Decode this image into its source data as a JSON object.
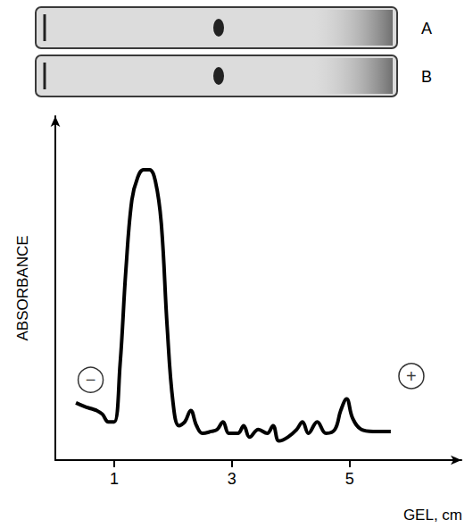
{
  "chart_data": {
    "type": "line",
    "panels": [
      "A",
      "B"
    ],
    "x_label": "GEL, cm",
    "y_label": "ABSORBANCE",
    "color": "#000000",
    "grid": false,
    "tick_labels": "x",
    "xlim": [
      0,
      6.9
    ],
    "xticks": [
      1,
      3,
      5
    ],
    "ylim": [
      0,
      9
    ],
    "x": [
      0.35,
      0.5,
      0.6,
      0.7,
      0.8,
      0.9,
      1.0,
      1.1,
      1.2,
      1.3,
      1.4,
      1.5,
      1.6,
      1.7,
      1.8,
      1.9,
      2.0,
      2.1,
      2.2,
      2.3,
      2.4,
      2.5,
      2.65,
      2.75,
      2.85,
      2.95,
      3.1,
      3.2,
      3.3,
      3.45,
      3.6,
      3.7,
      3.8,
      3.95,
      4.1,
      4.2,
      4.3,
      4.45,
      4.6,
      4.75,
      4.85,
      4.95,
      5.05,
      5.2,
      5.4,
      5.7
    ],
    "values": [
      1.5,
      1.4,
      1.35,
      1.3,
      1.2,
      1.0,
      1.0,
      2.5,
      5.0,
      6.8,
      7.4,
      7.6,
      7.6,
      7.3,
      6.2,
      3.5,
      1.5,
      0.9,
      1.0,
      1.3,
      0.9,
      0.7,
      0.75,
      0.8,
      1.0,
      0.7,
      0.7,
      0.9,
      0.6,
      0.8,
      0.7,
      0.9,
      0.5,
      0.6,
      0.8,
      1.0,
      0.7,
      1.0,
      0.7,
      0.8,
      1.3,
      1.6,
      1.1,
      0.8,
      0.75,
      0.75
    ],
    "annotations": [
      {
        "text": "−",
        "x": 0.6,
        "y": 2.1
      },
      {
        "text": "+",
        "x": 6.05,
        "y": 2.2
      }
    ]
  }
}
